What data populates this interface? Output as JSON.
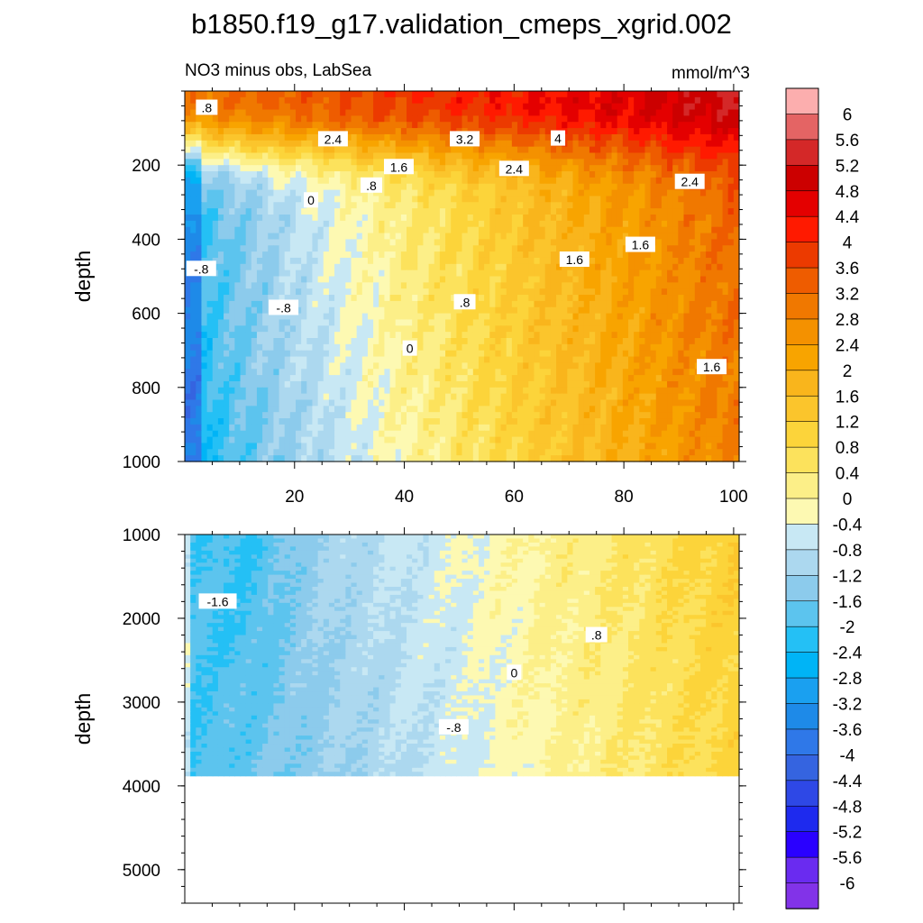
{
  "figure": {
    "title": "b1850.f19_g17.validation_cmeps_xgrid.002",
    "subtitle_left": "NO3 minus obs, LabSea",
    "subtitle_right": "mmol/m^3"
  },
  "colors": {
    "ramp": [
      "#8233e8",
      "#6a2bf0",
      "#2a00ff",
      "#1e2aee",
      "#2e48e6",
      "#3564e0",
      "#2f78e8",
      "#1e8ae8",
      "#1aa0f0",
      "#00b4f6",
      "#24c0f5",
      "#5cc4ee",
      "#8ccbec",
      "#acd8ef",
      "#c8e8f4",
      "#fdf9b2",
      "#fcef88",
      "#fce25c",
      "#fcd43a",
      "#fbc52c",
      "#f9b51c",
      "#f8a400",
      "#f49100",
      "#f07800",
      "#ee5c00",
      "#ec3a00",
      "#ff1a00",
      "#e40000",
      "#cc0000",
      "#d42828",
      "#e46464",
      "#fcaeae"
    ],
    "missing": "#ffffff"
  },
  "chart_data": [
    {
      "type": "contour",
      "panel": "upper",
      "title": "NO3 minus obs, LabSea",
      "units": "mmol/m^3",
      "xlabel": "",
      "ylabel": "depth",
      "xlim": [
        0,
        101
      ],
      "ylim": [
        1000,
        0
      ],
      "xticks": [
        20,
        40,
        60,
        80,
        100
      ],
      "yticks": [
        200,
        400,
        600,
        800,
        1000
      ],
      "contour_labels": [
        {
          "text": ".8",
          "x": 4,
          "y": 45
        },
        {
          "text": "2.4",
          "x": 27,
          "y": 130
        },
        {
          "text": "3.2",
          "x": 51,
          "y": 130
        },
        {
          "text": "4",
          "x": 68,
          "y": 128
        },
        {
          "text": "1.6",
          "x": 39,
          "y": 205
        },
        {
          "text": "2.4",
          "x": 60,
          "y": 210
        },
        {
          "text": "2.4",
          "x": 92,
          "y": 245
        },
        {
          "text": ".8",
          "x": 34,
          "y": 255
        },
        {
          "text": "0",
          "x": 23,
          "y": 295
        },
        {
          "text": "-.8",
          "x": 3,
          "y": 480
        },
        {
          "text": "1.6",
          "x": 71,
          "y": 455
        },
        {
          "text": "1.6",
          "x": 83,
          "y": 415
        },
        {
          "text": ".8",
          "x": 51,
          "y": 570
        },
        {
          "text": "-.8",
          "x": 18,
          "y": 585
        },
        {
          "text": "0",
          "x": 41,
          "y": 695
        },
        {
          "text": "1.6",
          "x": 96,
          "y": 745
        }
      ]
    },
    {
      "type": "contour",
      "panel": "lower",
      "xlabel": "",
      "ylabel": "depth",
      "xlim": [
        0,
        101
      ],
      "ylim": [
        5400,
        1000
      ],
      "yticks": [
        1000,
        2000,
        3000,
        4000,
        5000
      ],
      "data_bottom_depth": 3880,
      "contour_labels": [
        {
          "text": "-1.6",
          "x": 6,
          "y": 1800
        },
        {
          "text": ".8",
          "x": 75,
          "y": 2200
        },
        {
          "text": "0",
          "x": 60,
          "y": 2650
        },
        {
          "text": "-.8",
          "x": 49,
          "y": 3300
        }
      ]
    },
    {
      "type": "colorbar",
      "levels": [
        "6",
        "5.6",
        "5.2",
        "4.8",
        "4.4",
        "4",
        "3.6",
        "3.2",
        "2.8",
        "2.4",
        "2",
        "1.6",
        "1.2",
        "0.8",
        "0.4",
        "0",
        "-0.4",
        "-0.8",
        "-1.2",
        "-1.6",
        "-2",
        "-2.4",
        "-2.8",
        "-3.2",
        "-3.6",
        "-4",
        "-4.4",
        "-4.8",
        "-5.2",
        "-5.6",
        "-6"
      ]
    }
  ]
}
